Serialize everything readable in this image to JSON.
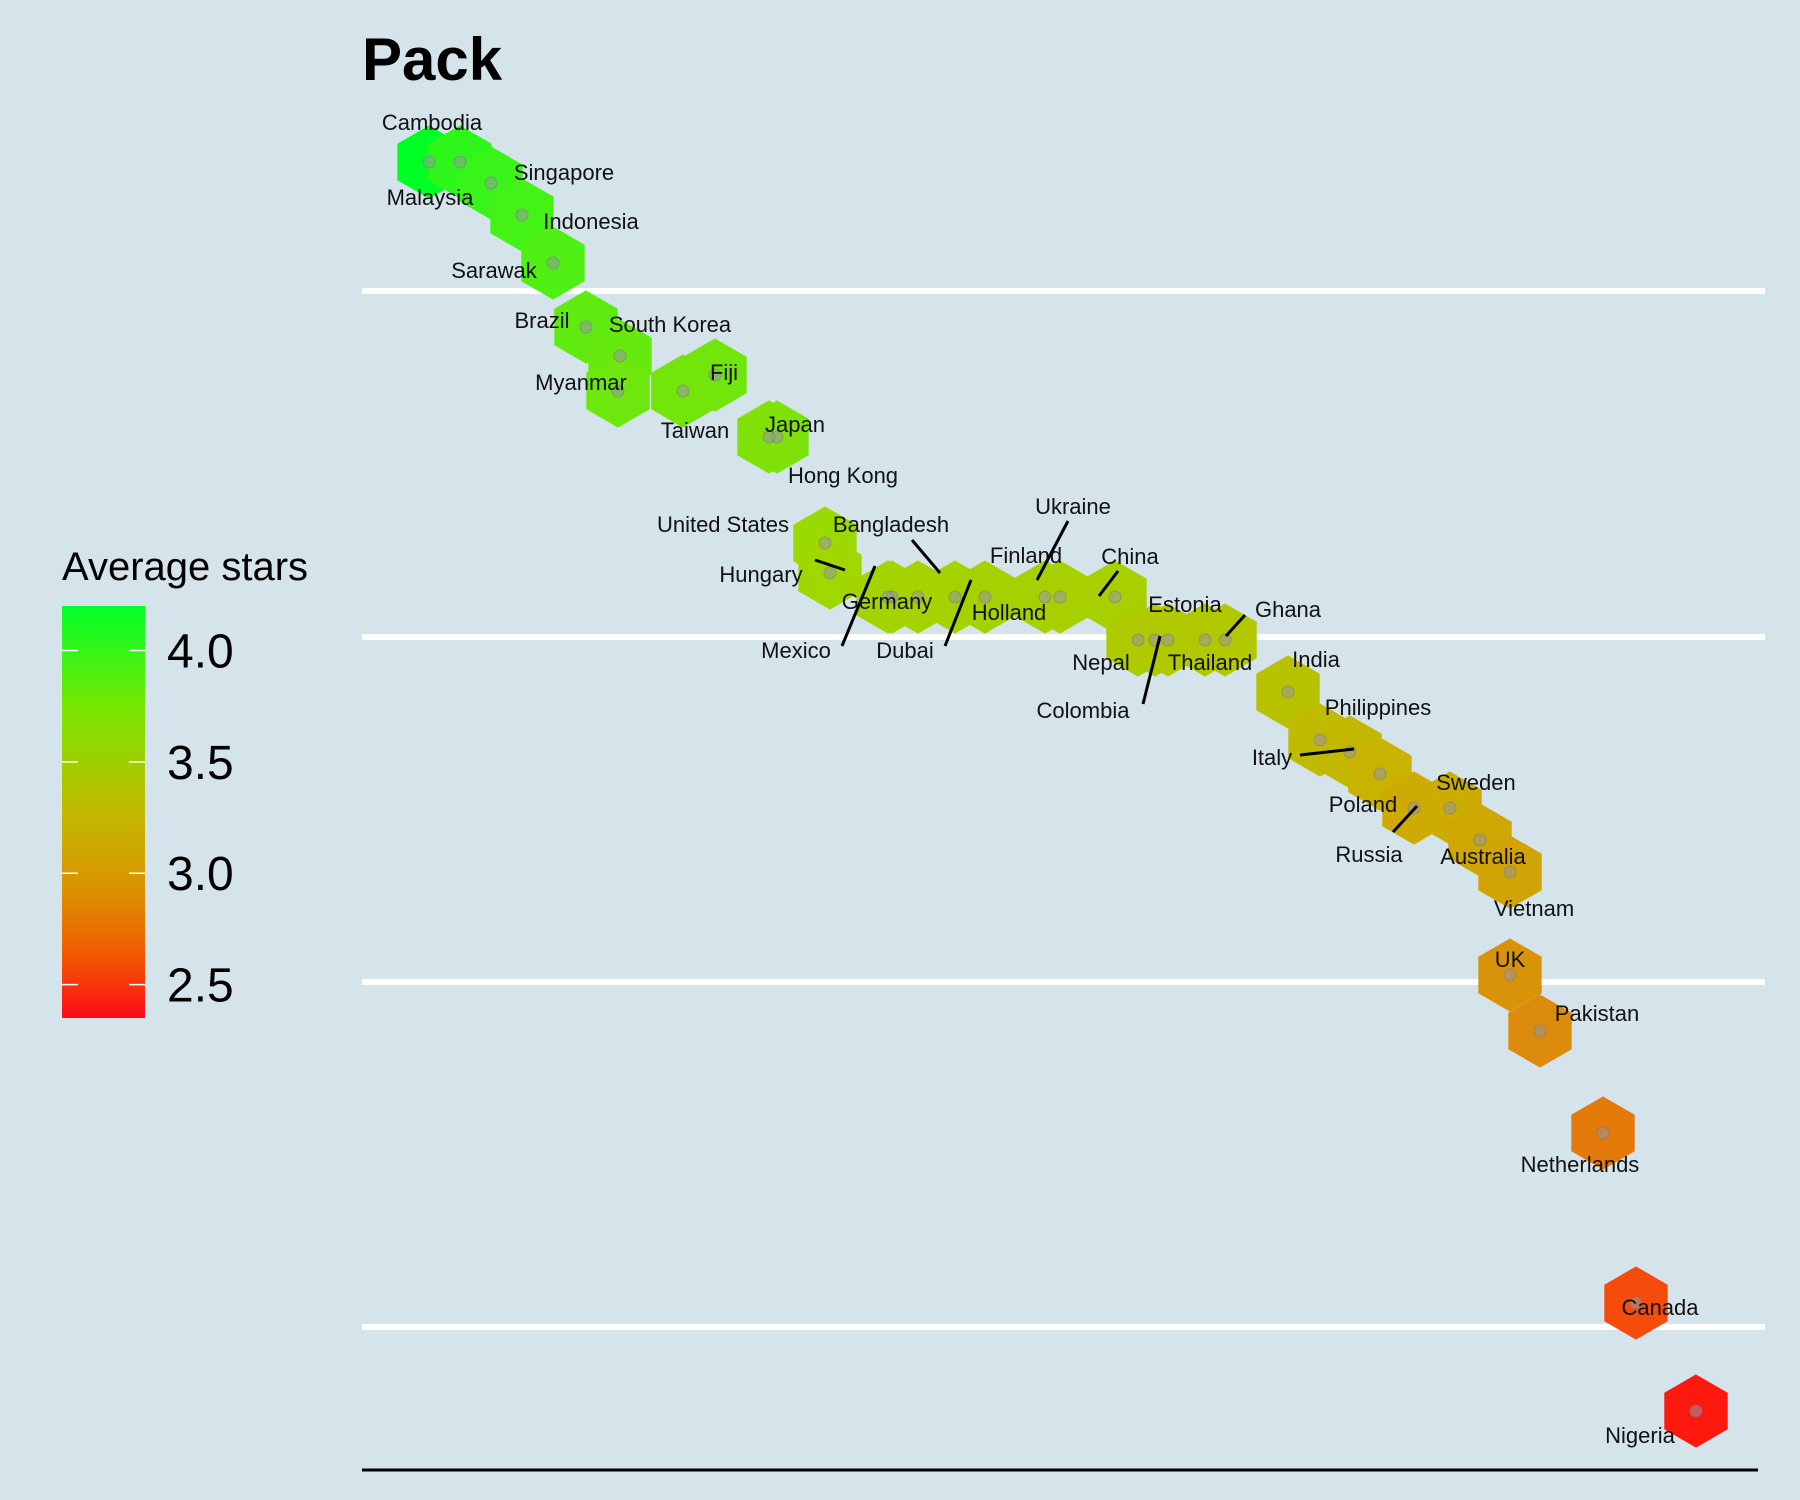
{
  "chart_data": {
    "type": "scatter",
    "title": "Pack",
    "legend": {
      "title": "Average stars",
      "ticks": [
        "4.0",
        "3.5",
        "3.0",
        "2.5"
      ],
      "tick_values": [
        4.0,
        3.5,
        3.0,
        2.5
      ],
      "range": [
        2.35,
        4.2
      ],
      "colors": {
        "high": "#00ff22",
        "mid": "#c8b400",
        "low": "#ff1010"
      },
      "placement": "left"
    },
    "gridlines": true,
    "points": [
      {
        "country": "Cambodia",
        "stars": 4.2
      },
      {
        "country": "Malaysia",
        "stars": 4.0
      },
      {
        "country": "Singapore",
        "stars": 3.95
      },
      {
        "country": "Indonesia",
        "stars": 3.9
      },
      {
        "country": "Sarawak",
        "stars": 3.85
      },
      {
        "country": "Brazil",
        "stars": 3.8
      },
      {
        "country": "South Korea",
        "stars": 3.78
      },
      {
        "country": "Myanmar",
        "stars": 3.76
      },
      {
        "country": "Fiji",
        "stars": 3.75
      },
      {
        "country": "Taiwan",
        "stars": 3.74
      },
      {
        "country": "Japan",
        "stars": 3.72
      },
      {
        "country": "Hong Kong",
        "stars": 3.7
      },
      {
        "country": "United States",
        "stars": 3.62
      },
      {
        "country": "Hungary",
        "stars": 3.6
      },
      {
        "country": "Bangladesh",
        "stars": 3.59
      },
      {
        "country": "Germany",
        "stars": 3.58
      },
      {
        "country": "Mexico",
        "stars": 3.57
      },
      {
        "country": "Dubai",
        "stars": 3.57
      },
      {
        "country": "Holland",
        "stars": 3.56
      },
      {
        "country": "Finland",
        "stars": 3.56
      },
      {
        "country": "Ukraine",
        "stars": 3.55
      },
      {
        "country": "China",
        "stars": 3.55
      },
      {
        "country": "Nepal",
        "stars": 3.52
      },
      {
        "country": "Estonia",
        "stars": 3.51
      },
      {
        "country": "Colombia",
        "stars": 3.5
      },
      {
        "country": "Thailand",
        "stars": 3.5
      },
      {
        "country": "Ghana",
        "stars": 3.49
      },
      {
        "country": "India",
        "stars": 3.45
      },
      {
        "country": "Philippines",
        "stars": 3.4
      },
      {
        "country": "Italy",
        "stars": 3.38
      },
      {
        "country": "Poland",
        "stars": 3.35
      },
      {
        "country": "Sweden",
        "stars": 3.3
      },
      {
        "country": "Russia",
        "stars": 3.28
      },
      {
        "country": "Australia",
        "stars": 3.25
      },
      {
        "country": "Vietnam",
        "stars": 3.22
      },
      {
        "country": "UK",
        "stars": 3.1
      },
      {
        "country": "Pakistan",
        "stars": 3.05
      },
      {
        "country": "Netherlands",
        "stars": 2.95
      },
      {
        "country": "Canada",
        "stars": 2.7
      },
      {
        "country": "Nigeria",
        "stars": 2.4
      }
    ]
  }
}
